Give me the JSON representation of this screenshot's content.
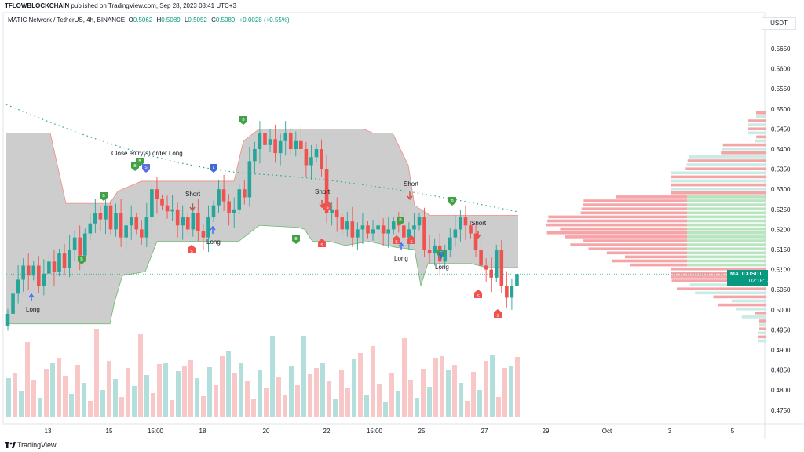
{
  "header": {
    "author": "TFLOWBLOCKCHAIN",
    "published": "published on TradingView.com, Sep 28, 2023 08:41 UTC+3"
  },
  "legend": {
    "symbol": "MATIC Network / TetherUS, 4h, BINANCE",
    "open_label": "O",
    "open": "0.5062",
    "high_label": "H",
    "high": "0.5089",
    "low_label": "L",
    "low": "0.5052",
    "close_label": "C",
    "close": "0.5089",
    "change": "+0.0028 (+0.55%)"
  },
  "price_axis": {
    "currency": "USDT",
    "ticks": [
      "0.5650",
      "0.5600",
      "0.5550",
      "0.5500",
      "0.5450",
      "0.5400",
      "0.5350",
      "0.5300",
      "0.5250",
      "0.5200",
      "0.5150",
      "0.5100",
      "0.5050",
      "0.5000",
      "0.4950",
      "0.4900",
      "0.4850",
      "0.4800",
      "0.4750"
    ]
  },
  "time_axis": {
    "labels": [
      "13",
      "15",
      "15:00",
      "18",
      "20",
      "22",
      "15:00",
      "25",
      "27",
      "29",
      "Oct",
      "3",
      "5"
    ]
  },
  "current_price": {
    "symbol": "MATICUSDT",
    "price": "0.5089",
    "countdown": "02:18:14"
  },
  "annotations": {
    "close_entry": "Close entry(s) order Long",
    "short": "Short",
    "long": "Long"
  },
  "colors": {
    "up": "#26a69a",
    "down": "#ef5350",
    "band": "#c8c8c8",
    "vol_up": "#b2dfdb",
    "vol_down": "#f8c8c8",
    "vp_green": "#b9e4c0",
    "vp_red": "#f5a5a8"
  },
  "footer": {
    "brand": "TradingView"
  }
}
